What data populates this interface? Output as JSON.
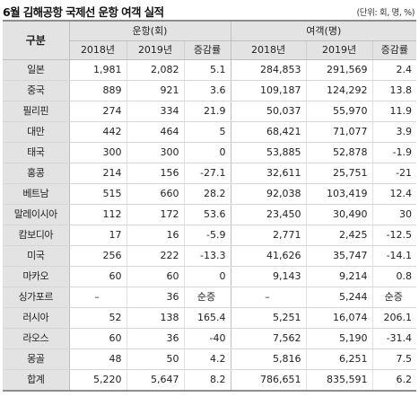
{
  "title": "6월 김해공항 국제선 운항 여객 실적",
  "unit": "(단위: 회, 명, %)",
  "header": {
    "row_label": "구분",
    "flights_group": "운항(회)",
    "passengers_group": "여객(명)",
    "year1": "2018년",
    "year2": "2019년",
    "change": "증감률"
  },
  "rows": [
    {
      "country": "일본",
      "f2018": "1,981",
      "f2019": "2,082",
      "fchg": "5.1",
      "p2018": "284,853",
      "p2019": "291,569",
      "pchg": "2.4"
    },
    {
      "country": "중국",
      "f2018": "889",
      "f2019": "921",
      "fchg": "3.6",
      "p2018": "109,187",
      "p2019": "124,292",
      "pchg": "13.8"
    },
    {
      "country": "필리핀",
      "f2018": "274",
      "f2019": "334",
      "fchg": "21.9",
      "p2018": "50,037",
      "p2019": "55,970",
      "pchg": "11.9"
    },
    {
      "country": "대만",
      "f2018": "442",
      "f2019": "464",
      "fchg": "5",
      "p2018": "68,421",
      "p2019": "71,077",
      "pchg": "3.9"
    },
    {
      "country": "태국",
      "f2018": "300",
      "f2019": "300",
      "fchg": "0",
      "p2018": "53,885",
      "p2019": "52,878",
      "pchg": "-1.9"
    },
    {
      "country": "홍콩",
      "f2018": "214",
      "f2019": "156",
      "fchg": "-27.1",
      "p2018": "32,611",
      "p2019": "25,751",
      "pchg": "-21"
    },
    {
      "country": "베트남",
      "f2018": "515",
      "f2019": "660",
      "fchg": "28.2",
      "p2018": "92,038",
      "p2019": "103,419",
      "pchg": "12.4"
    },
    {
      "country": "말레이시아",
      "f2018": "112",
      "f2019": "172",
      "fchg": "53.6",
      "p2018": "23,450",
      "p2019": "30,490",
      "pchg": "30"
    },
    {
      "country": "캄보디아",
      "f2018": "17",
      "f2019": "16",
      "fchg": "-5.9",
      "p2018": "2,771",
      "p2019": "2,425",
      "pchg": "-12.5"
    },
    {
      "country": "미국",
      "f2018": "256",
      "f2019": "222",
      "fchg": "-13.3",
      "p2018": "41,626",
      "p2019": "35,747",
      "pchg": "-14.1"
    },
    {
      "country": "마카오",
      "f2018": "60",
      "f2019": "60",
      "fchg": "0",
      "p2018": "9,143",
      "p2019": "9,214",
      "pchg": "0.8"
    },
    {
      "country": "싱가포르",
      "f2018": "–",
      "f2019": "36",
      "fchg": "순증",
      "p2018": "–",
      "p2019": "5,244",
      "pchg": "순증"
    },
    {
      "country": "러시아",
      "f2018": "52",
      "f2019": "138",
      "fchg": "165.4",
      "p2018": "5,251",
      "p2019": "16,074",
      "pchg": "206.1"
    },
    {
      "country": "라오스",
      "f2018": "60",
      "f2019": "36",
      "fchg": "-40",
      "p2018": "7,562",
      "p2019": "5,190",
      "pchg": "-31.4"
    },
    {
      "country": "몽골",
      "f2018": "48",
      "f2019": "50",
      "fchg": "4.2",
      "p2018": "5,816",
      "p2019": "6,251",
      "pchg": "7.5"
    },
    {
      "country": "합계",
      "f2018": "5,220",
      "f2019": "5,647",
      "fchg": "8.2",
      "p2018": "786,651",
      "p2019": "835,591",
      "pchg": "6.2"
    }
  ]
}
